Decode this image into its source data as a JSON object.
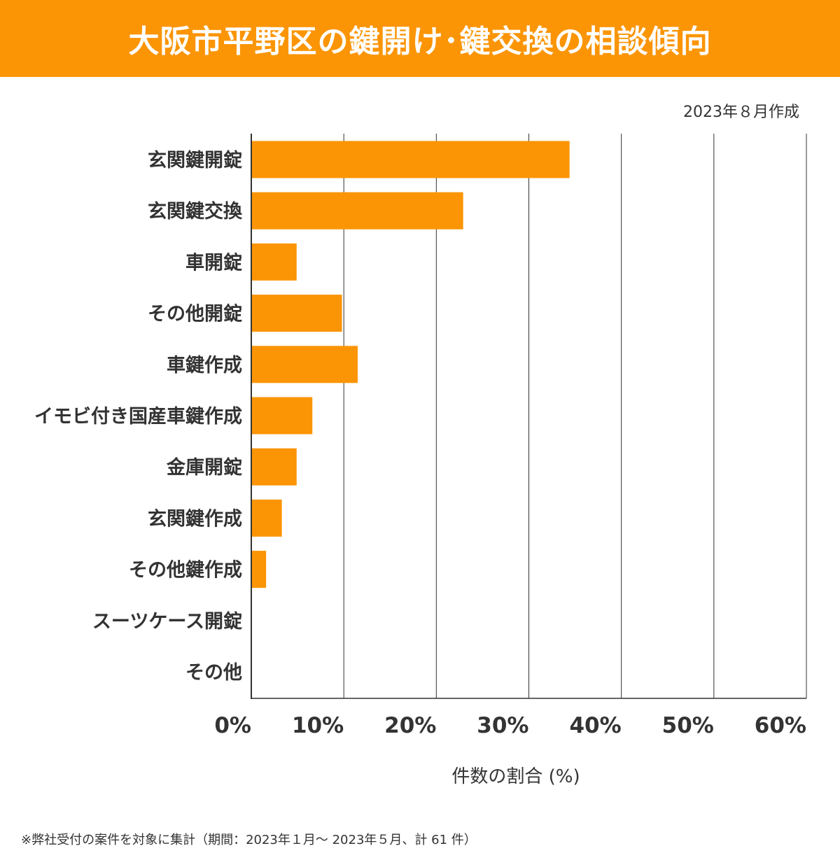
{
  "header": {
    "title": "大阪市平野区の鍵開け･鍵交換の相談傾向"
  },
  "date_note": "2023年８月作成",
  "footnote": "※弊社受付の案件を対象に集計（期間：2023年１月～ 2023年５月、計 61 件）",
  "colors": {
    "bar": "#fb9505",
    "banner": "#fb9505",
    "grid": "#333333",
    "text": "#333333"
  },
  "chart_data": {
    "type": "bar",
    "orientation": "horizontal",
    "title": "大阪市平野区の鍵開け･鍵交換の相談傾向",
    "xlabel": "件数の割合 (%)",
    "ylabel": "",
    "xlim": [
      0,
      60
    ],
    "grid": true,
    "categories": [
      "玄関鍵開錠",
      "玄関鍵交換",
      "車開錠",
      "その他開錠",
      "車鍵作成",
      "イモビ付き国産車鍵作成",
      "金庫開錠",
      "玄関鍵作成",
      "その他鍵作成",
      "スーツケース開錠",
      "その他"
    ],
    "values": [
      34.4,
      22.9,
      4.9,
      9.8,
      11.5,
      6.6,
      4.9,
      3.3,
      1.6,
      0,
      0
    ],
    "x_ticks": [
      0,
      10,
      20,
      30,
      40,
      50,
      60
    ],
    "x_tick_labels": [
      "0%",
      "10%",
      "20%",
      "30%",
      "40%",
      "50%",
      "60%"
    ]
  }
}
